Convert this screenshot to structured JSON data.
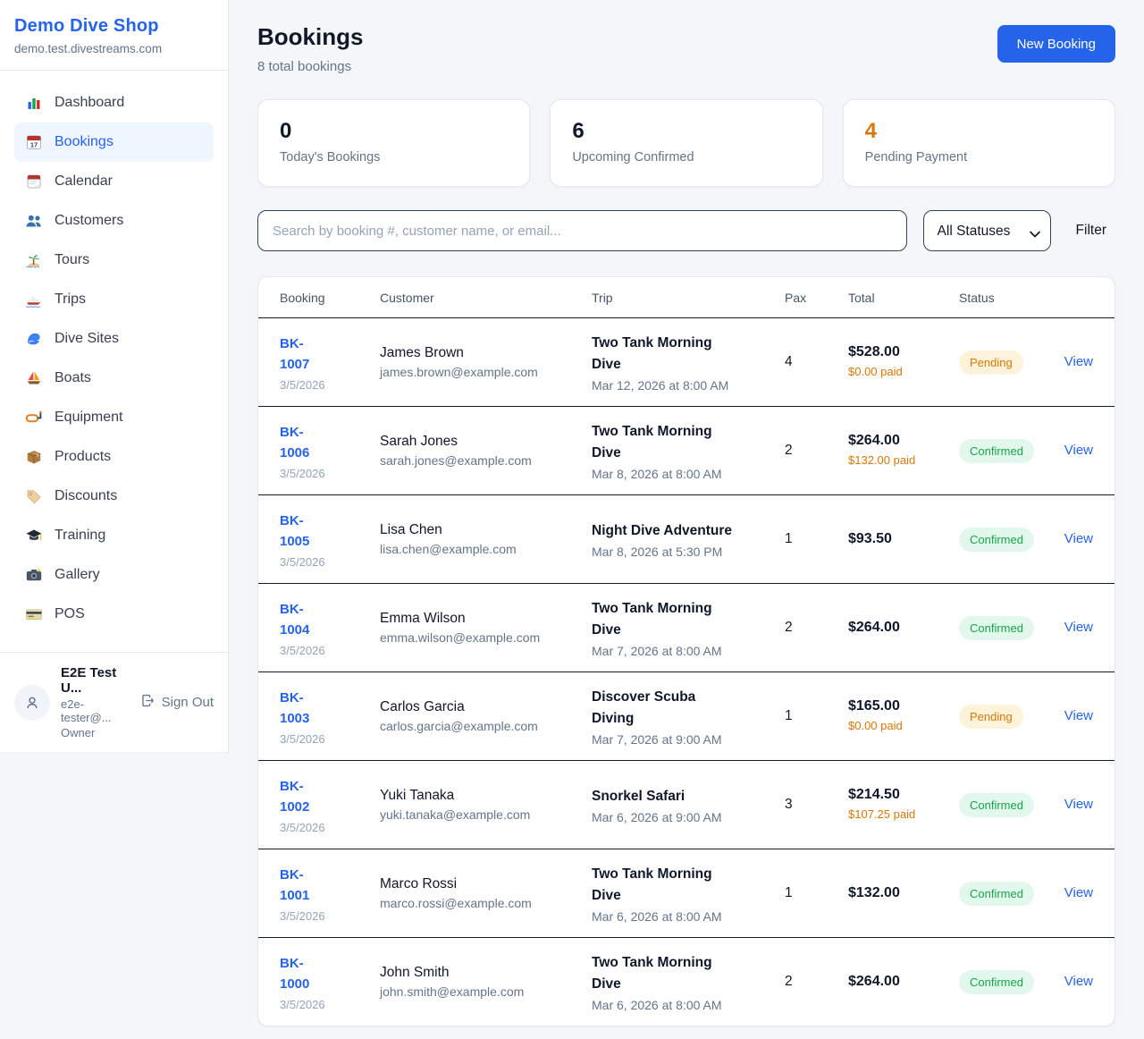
{
  "sidebar": {
    "brand": "Demo Dive Shop",
    "domain": "demo.test.divestreams.com",
    "items": [
      {
        "icon": "bar-chart-icon",
        "label": "Dashboard",
        "active": false
      },
      {
        "icon": "calendar-date-icon",
        "label": "Bookings",
        "active": true
      },
      {
        "icon": "calendar-icon",
        "label": "Calendar",
        "active": false
      },
      {
        "icon": "customers-icon",
        "label": "Customers",
        "active": false
      },
      {
        "icon": "island-icon",
        "label": "Tours",
        "active": false
      },
      {
        "icon": "speedboat-icon",
        "label": "Trips",
        "active": false
      },
      {
        "icon": "wave-icon",
        "label": "Dive Sites",
        "active": false
      },
      {
        "icon": "sailboat-icon",
        "label": "Boats",
        "active": false
      },
      {
        "icon": "dive-mask-icon",
        "label": "Equipment",
        "active": false
      },
      {
        "icon": "package-icon",
        "label": "Products",
        "active": false
      },
      {
        "icon": "tag-icon",
        "label": "Discounts",
        "active": false
      },
      {
        "icon": "graduation-cap-icon",
        "label": "Training",
        "active": false
      },
      {
        "icon": "camera-icon",
        "label": "Gallery",
        "active": false
      },
      {
        "icon": "credit-card-icon",
        "label": "POS",
        "active": false
      }
    ],
    "user": {
      "name": "E2E Test U...",
      "email": "e2e-tester@...",
      "role": "Owner",
      "sign_out_label": "Sign Out"
    }
  },
  "header": {
    "title": "Bookings",
    "subtitle": "8 total bookings",
    "new_booking_label": "New Booking"
  },
  "stats": [
    {
      "value": "0",
      "label": "Today's Bookings",
      "accent": "default"
    },
    {
      "value": "6",
      "label": "Upcoming Confirmed",
      "accent": "default"
    },
    {
      "value": "4",
      "label": "Pending Payment",
      "accent": "orange"
    }
  ],
  "filters": {
    "search_placeholder": "Search by booking #, customer name, or email...",
    "status_selected": "All Statuses",
    "filter_label": "Filter"
  },
  "table": {
    "headers": [
      "Booking",
      "Customer",
      "Trip",
      "Pax",
      "Total",
      "Status"
    ],
    "rows": [
      {
        "id": "BK-1007",
        "date": "3/5/2026",
        "customer_name": "James Brown",
        "customer_email": "james.brown@example.com",
        "trip_name": "Two Tank Morning Dive",
        "trip_datetime": "Mar 12, 2026 at 8:00 AM",
        "pax": "4",
        "total": "$528.00",
        "paid": "$0.00 paid",
        "status": "Pending",
        "action": "View"
      },
      {
        "id": "BK-1006",
        "date": "3/5/2026",
        "customer_name": "Sarah Jones",
        "customer_email": "sarah.jones@example.com",
        "trip_name": "Two Tank Morning Dive",
        "trip_datetime": "Mar 8, 2026 at 8:00 AM",
        "pax": "2",
        "total": "$264.00",
        "paid": "$132.00 paid",
        "status": "Confirmed",
        "action": "View"
      },
      {
        "id": "BK-1005",
        "date": "3/5/2026",
        "customer_name": "Lisa Chen",
        "customer_email": "lisa.chen@example.com",
        "trip_name": "Night Dive Adventure",
        "trip_datetime": "Mar 8, 2026 at 5:30 PM",
        "pax": "1",
        "total": "$93.50",
        "paid": "",
        "status": "Confirmed",
        "action": "View"
      },
      {
        "id": "BK-1004",
        "date": "3/5/2026",
        "customer_name": "Emma Wilson",
        "customer_email": "emma.wilson@example.com",
        "trip_name": "Two Tank Morning Dive",
        "trip_datetime": "Mar 7, 2026 at 8:00 AM",
        "pax": "2",
        "total": "$264.00",
        "paid": "",
        "status": "Confirmed",
        "action": "View"
      },
      {
        "id": "BK-1003",
        "date": "3/5/2026",
        "customer_name": "Carlos Garcia",
        "customer_email": "carlos.garcia@example.com",
        "trip_name": "Discover Scuba Diving",
        "trip_datetime": "Mar 7, 2026 at 9:00 AM",
        "pax": "1",
        "total": "$165.00",
        "paid": "$0.00 paid",
        "status": "Pending",
        "action": "View"
      },
      {
        "id": "BK-1002",
        "date": "3/5/2026",
        "customer_name": "Yuki Tanaka",
        "customer_email": "yuki.tanaka@example.com",
        "trip_name": "Snorkel Safari",
        "trip_datetime": "Mar 6, 2026 at 9:00 AM",
        "pax": "3",
        "total": "$214.50",
        "paid": "$107.25 paid",
        "status": "Confirmed",
        "action": "View"
      },
      {
        "id": "BK-1001",
        "date": "3/5/2026",
        "customer_name": "Marco Rossi",
        "customer_email": "marco.rossi@example.com",
        "trip_name": "Two Tank Morning Dive",
        "trip_datetime": "Mar 6, 2026 at 8:00 AM",
        "pax": "1",
        "total": "$132.00",
        "paid": "",
        "status": "Confirmed",
        "action": "View"
      },
      {
        "id": "BK-1000",
        "date": "3/5/2026",
        "customer_name": "John Smith",
        "customer_email": "john.smith@example.com",
        "trip_name": "Two Tank Morning Dive",
        "trip_datetime": "Mar 6, 2026 at 8:00 AM",
        "pax": "2",
        "total": "$264.00",
        "paid": "",
        "status": "Confirmed",
        "action": "View"
      }
    ]
  },
  "accents": {
    "primary": "#2563eb",
    "pending": "#d97706",
    "confirmed": "#16a34a"
  }
}
